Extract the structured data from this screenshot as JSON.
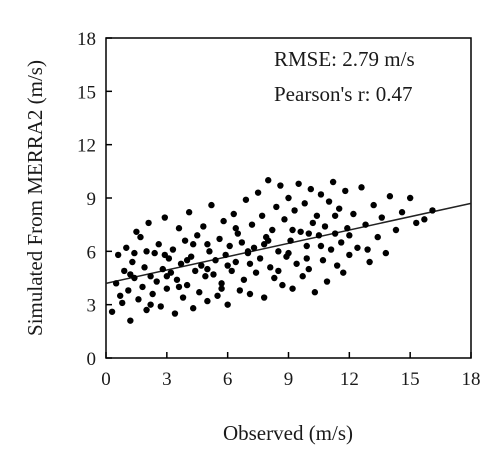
{
  "chart_data": {
    "type": "scatter",
    "title": "",
    "xlabel": "Observed (m/s)",
    "ylabel": "Simulated From MERRA2 (m/s)",
    "xlim": [
      0,
      18
    ],
    "ylim": [
      0,
      18
    ],
    "xticks": [
      "0",
      "3",
      "6",
      "9",
      "12",
      "15",
      "18"
    ],
    "yticks": [
      "0",
      "3",
      "6",
      "9",
      "12",
      "15",
      "18"
    ],
    "grid": false,
    "legend": "none",
    "annotations": [
      "RMSE: 2.79 m/s",
      "Pearson's r: 0.47"
    ],
    "marker_color": "#000000",
    "points": [
      [
        0.3,
        2.6
      ],
      [
        0.5,
        4.2
      ],
      [
        0.6,
        5.8
      ],
      [
        0.8,
        3.1
      ],
      [
        0.9,
        4.9
      ],
      [
        1.0,
        6.2
      ],
      [
        1.1,
        3.8
      ],
      [
        1.2,
        2.1
      ],
      [
        1.3,
        5.4
      ],
      [
        1.4,
        4.5
      ],
      [
        1.5,
        7.1
      ],
      [
        1.6,
        3.3
      ],
      [
        1.7,
        6.8
      ],
      [
        1.8,
        4.0
      ],
      [
        1.9,
        5.1
      ],
      [
        2.0,
        2.7
      ],
      [
        2.1,
        7.6
      ],
      [
        2.2,
        4.6
      ],
      [
        2.3,
        3.6
      ],
      [
        2.4,
        5.9
      ],
      [
        2.5,
        4.3
      ],
      [
        2.6,
        6.4
      ],
      [
        2.7,
        2.9
      ],
      [
        2.8,
        5.0
      ],
      [
        2.9,
        7.9
      ],
      [
        3.0,
        3.9
      ],
      [
        3.1,
        5.6
      ],
      [
        3.2,
        4.8
      ],
      [
        3.3,
        6.1
      ],
      [
        3.4,
        2.5
      ],
      [
        3.5,
        4.4
      ],
      [
        3.6,
        7.3
      ],
      [
        3.7,
        5.3
      ],
      [
        3.8,
        3.4
      ],
      [
        3.9,
        6.6
      ],
      [
        4.0,
        4.1
      ],
      [
        4.1,
        8.2
      ],
      [
        4.2,
        5.7
      ],
      [
        4.3,
        2.8
      ],
      [
        4.4,
        4.9
      ],
      [
        4.5,
        6.9
      ],
      [
        4.6,
        3.7
      ],
      [
        4.7,
        5.2
      ],
      [
        4.8,
        7.4
      ],
      [
        4.9,
        4.6
      ],
      [
        5.0,
        3.2
      ],
      [
        5.1,
        6.0
      ],
      [
        5.2,
        8.6
      ],
      [
        5.3,
        4.7
      ],
      [
        5.4,
        5.5
      ],
      [
        5.5,
        3.5
      ],
      [
        5.6,
        6.7
      ],
      [
        5.7,
        4.2
      ],
      [
        5.8,
        7.7
      ],
      [
        5.9,
        5.8
      ],
      [
        6.0,
        3.0
      ],
      [
        6.1,
        6.3
      ],
      [
        6.2,
        4.9
      ],
      [
        6.3,
        8.1
      ],
      [
        6.4,
        5.4
      ],
      [
        6.5,
        7.0
      ],
      [
        6.6,
        3.8
      ],
      [
        6.7,
        6.5
      ],
      [
        6.8,
        4.4
      ],
      [
        6.9,
        8.9
      ],
      [
        7.0,
        5.9
      ],
      [
        7.1,
        3.6
      ],
      [
        7.2,
        7.5
      ],
      [
        7.3,
        6.2
      ],
      [
        7.4,
        4.8
      ],
      [
        7.5,
        9.3
      ],
      [
        7.6,
        5.6
      ],
      [
        7.7,
        8.0
      ],
      [
        7.8,
        3.4
      ],
      [
        7.9,
        6.8
      ],
      [
        8.0,
        10.0
      ],
      [
        8.1,
        5.1
      ],
      [
        8.2,
        7.2
      ],
      [
        8.3,
        4.5
      ],
      [
        8.4,
        8.5
      ],
      [
        8.5,
        6.0
      ],
      [
        8.6,
        9.7
      ],
      [
        8.7,
        4.1
      ],
      [
        8.8,
        7.8
      ],
      [
        8.9,
        5.7
      ],
      [
        9.0,
        9.0
      ],
      [
        9.1,
        6.6
      ],
      [
        9.2,
        3.9
      ],
      [
        9.3,
        8.3
      ],
      [
        9.4,
        5.3
      ],
      [
        9.5,
        9.8
      ],
      [
        9.6,
        7.1
      ],
      [
        9.7,
        4.6
      ],
      [
        9.8,
        8.7
      ],
      [
        9.9,
        6.3
      ],
      [
        10.0,
        5.0
      ],
      [
        10.1,
        9.5
      ],
      [
        10.2,
        7.6
      ],
      [
        10.3,
        3.7
      ],
      [
        10.4,
        8.0
      ],
      [
        10.5,
        6.9
      ],
      [
        10.6,
        9.2
      ],
      [
        10.7,
        5.5
      ],
      [
        10.8,
        7.4
      ],
      [
        10.9,
        4.3
      ],
      [
        11.0,
        8.8
      ],
      [
        11.1,
        6.1
      ],
      [
        11.2,
        9.9
      ],
      [
        11.3,
        7.0
      ],
      [
        11.4,
        5.2
      ],
      [
        11.5,
        8.4
      ],
      [
        11.6,
        6.5
      ],
      [
        11.7,
        4.8
      ],
      [
        11.8,
        9.4
      ],
      [
        11.9,
        7.3
      ],
      [
        12.0,
        5.8
      ],
      [
        12.2,
        8.1
      ],
      [
        12.4,
        6.2
      ],
      [
        12.6,
        9.6
      ],
      [
        12.8,
        7.5
      ],
      [
        13.0,
        5.4
      ],
      [
        13.2,
        8.6
      ],
      [
        13.4,
        6.8
      ],
      [
        13.6,
        7.9
      ],
      [
        13.8,
        5.9
      ],
      [
        14.0,
        9.1
      ],
      [
        14.3,
        7.2
      ],
      [
        14.6,
        8.2
      ],
      [
        15.0,
        9.0
      ],
      [
        15.3,
        7.6
      ],
      [
        15.7,
        7.8
      ],
      [
        16.1,
        8.3
      ],
      [
        0.7,
        3.5
      ],
      [
        1.4,
        5.9
      ],
      [
        2.2,
        3.0
      ],
      [
        2.9,
        5.8
      ],
      [
        3.6,
        4.0
      ],
      [
        4.3,
        6.4
      ],
      [
        5.0,
        5.0
      ],
      [
        5.7,
        3.9
      ],
      [
        6.4,
        7.3
      ],
      [
        7.1,
        5.3
      ],
      [
        7.8,
        6.4
      ],
      [
        8.5,
        4.9
      ],
      [
        9.2,
        7.2
      ],
      [
        9.9,
        5.6
      ],
      [
        10.6,
        6.3
      ],
      [
        11.3,
        8.0
      ],
      [
        12.0,
        6.9
      ],
      [
        12.9,
        6.1
      ],
      [
        1.2,
        4.7
      ],
      [
        2.0,
        6.0
      ],
      [
        3.0,
        4.6
      ],
      [
        4.0,
        5.5
      ],
      [
        5.0,
        6.4
      ],
      [
        6.0,
        5.2
      ],
      [
        7.0,
        6.0
      ],
      [
        8.0,
        6.6
      ],
      [
        9.0,
        5.9
      ],
      [
        10.0,
        7.0
      ]
    ],
    "fit_line": {
      "x": [
        0,
        18
      ],
      "y": [
        4.2,
        8.7
      ]
    }
  }
}
